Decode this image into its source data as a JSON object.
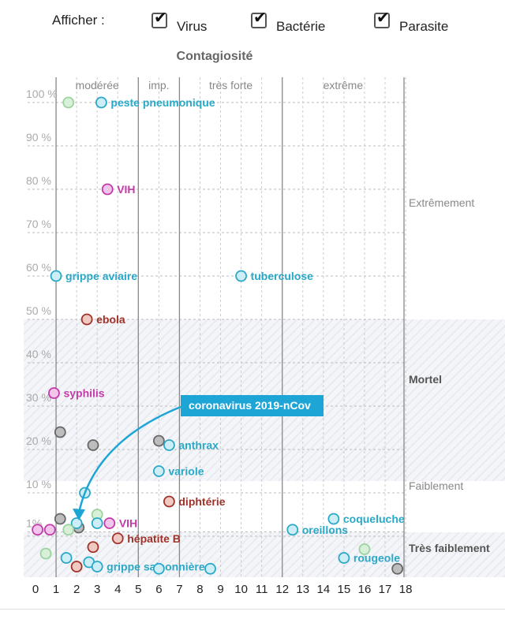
{
  "filters": {
    "label": "Afficher :",
    "items": [
      {
        "label": "Virus",
        "checked": true
      },
      {
        "label": "Bactérie",
        "checked": true
      },
      {
        "label": "Parasite",
        "checked": true
      }
    ]
  },
  "colors": {
    "virus": "#2aa8c8",
    "bacterie": "#a0322a",
    "parasite": "#c23ba8",
    "grey": "#666666",
    "light_green": "#9bd3a0",
    "callout": "#1da5d6"
  },
  "chart_data": {
    "type": "scatter",
    "title": "Contagiosité",
    "xlim": [
      0,
      18
    ],
    "x_ticks": [
      "0",
      "1",
      "2",
      "3",
      "4",
      "5",
      "6",
      "7",
      "8",
      "9",
      "10",
      "11",
      "12",
      "13",
      "14",
      "15",
      "16",
      "17",
      "18"
    ],
    "y_tick_labels": [
      "100 %",
      "90 %",
      "80 %",
      "70 %",
      "60 %",
      "50 %",
      "40 %",
      "30 %",
      "20 %",
      "10 %",
      "1%"
    ],
    "contagion_zones": [
      {
        "label": "modérée",
        "from": 1,
        "to": 5
      },
      {
        "label": "imp.",
        "from": 5,
        "to": 7
      },
      {
        "label": "très forte",
        "from": 7,
        "to": 12
      },
      {
        "label": "extrême",
        "from": 12,
        "to": 18
      }
    ],
    "mortality_zones": [
      {
        "label": "Extrêmement"
      },
      {
        "label": "Mortel"
      },
      {
        "label": "Faiblement"
      },
      {
        "label": "Très faiblement"
      }
    ],
    "callout": "coronavirus 2019-nCov",
    "points": [
      {
        "name": "peste pneumonique",
        "x": 3.2,
        "y": 100,
        "type": "virus"
      },
      {
        "name": "",
        "x": 1.6,
        "y": 100,
        "type": "green"
      },
      {
        "name": "VIH",
        "x": 3.5,
        "y": 80,
        "type": "parasite"
      },
      {
        "name": "grippe aviaire",
        "x": 1.0,
        "y": 60,
        "type": "virus"
      },
      {
        "name": "tuberculose",
        "x": 10.0,
        "y": 60,
        "type": "virus"
      },
      {
        "name": "ebola",
        "x": 2.5,
        "y": 50,
        "type": "bacterie"
      },
      {
        "name": "syphilis",
        "x": 0.9,
        "y": 33,
        "type": "parasite"
      },
      {
        "name": "",
        "x": 1.2,
        "y": 24,
        "type": "grey"
      },
      {
        "name": "",
        "x": 2.8,
        "y": 21,
        "type": "grey"
      },
      {
        "name": "",
        "x": 6.0,
        "y": 22,
        "type": "grey"
      },
      {
        "name": "anthrax",
        "x": 6.5,
        "y": 21,
        "type": "virus"
      },
      {
        "name": "variole",
        "x": 6.0,
        "y": 15,
        "type": "virus"
      },
      {
        "name": "",
        "x": 2.4,
        "y": 10,
        "type": "virus"
      },
      {
        "name": "diphtérie",
        "x": 6.5,
        "y": 8,
        "type": "bacterie"
      },
      {
        "name": "",
        "x": 1.2,
        "y": 4,
        "type": "grey"
      },
      {
        "name": "",
        "x": 2.1,
        "y": 2,
        "type": "grey"
      },
      {
        "name": "",
        "x": 2.0,
        "y": 3,
        "type": "virus"
      },
      {
        "name": "",
        "x": 1.6,
        "y": 1.5,
        "type": "green"
      },
      {
        "name": "",
        "x": 3.0,
        "y": 5,
        "type": "green"
      },
      {
        "name": "",
        "x": 3.0,
        "y": 3,
        "type": "virus"
      },
      {
        "name": "VIH",
        "x": 3.6,
        "y": 3,
        "type": "parasite"
      },
      {
        "name": "",
        "x": 0.1,
        "y": 1.5,
        "type": "parasite"
      },
      {
        "name": "",
        "x": 0.7,
        "y": 1.5,
        "type": "parasite"
      },
      {
        "name": "hépatite B",
        "x": 4.0,
        "y": -0.5,
        "type": "bacterie"
      },
      {
        "name": "",
        "x": 2.8,
        "y": -2.5,
        "type": "bacterie"
      },
      {
        "name": "",
        "x": 0.5,
        "y": -4,
        "type": "green"
      },
      {
        "name": "",
        "x": 1.5,
        "y": -5,
        "type": "virus"
      },
      {
        "name": "",
        "x": 2.0,
        "y": -7,
        "type": "bacterie"
      },
      {
        "name": "",
        "x": 2.6,
        "y": -6,
        "type": "virus"
      },
      {
        "name": "grippe saisonnière",
        "x": 3.0,
        "y": -7,
        "type": "virus"
      },
      {
        "name": "",
        "x": 6.0,
        "y": -7.5,
        "type": "virus"
      },
      {
        "name": "",
        "x": 8.5,
        "y": -7.5,
        "type": "virus"
      },
      {
        "name": "oreillons",
        "x": 12.5,
        "y": 1.5,
        "type": "virus"
      },
      {
        "name": "coqueluche",
        "x": 14.5,
        "y": 4,
        "type": "virus"
      },
      {
        "name": "",
        "x": 16.0,
        "y": -3,
        "type": "green"
      },
      {
        "name": "rougeole",
        "x": 15.0,
        "y": -5,
        "type": "virus"
      },
      {
        "name": "",
        "x": 17.6,
        "y": -7.5,
        "type": "grey"
      }
    ]
  }
}
